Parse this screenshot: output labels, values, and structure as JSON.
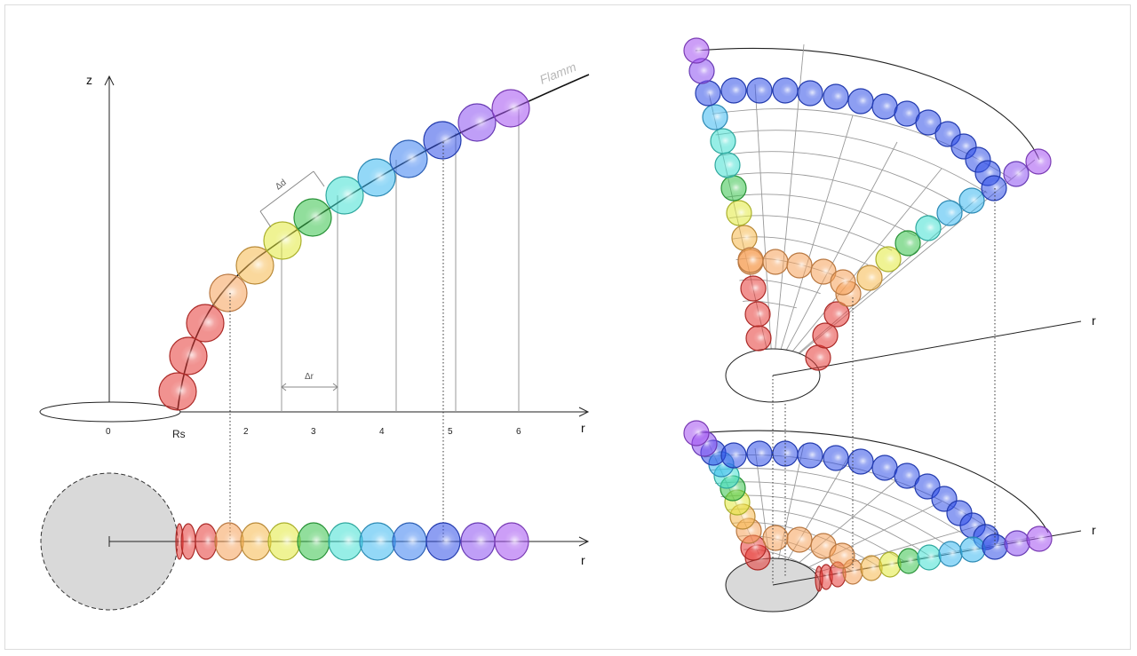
{
  "labels": {
    "z_axis": "z",
    "r_axis": "r",
    "r_axis_bottom": "r",
    "r_axis_right_top": "r",
    "r_axis_right_bottom": "r",
    "flamm": "Flamm",
    "delta_d": "Δd",
    "delta_r": "Δr",
    "tick_0": "0",
    "tick_rs": "Rs",
    "tick_2": "2",
    "tick_3": "3",
    "tick_4": "4",
    "tick_5": "5",
    "tick_6": "6"
  },
  "colors": {
    "sphere_sequence": [
      "#e53935",
      "#e53935",
      "#e53935",
      "#f6a057",
      "#f6b84a",
      "#e2ea3a",
      "#36c24a",
      "#3fe0d2",
      "#3bb8f0",
      "#3b7ff0",
      "#2f4ee8",
      "#8a4ff0",
      "#a24ef0"
    ],
    "horizon_fill": "#d9d9d9",
    "flamm_label": "#b7b7b7"
  }
}
